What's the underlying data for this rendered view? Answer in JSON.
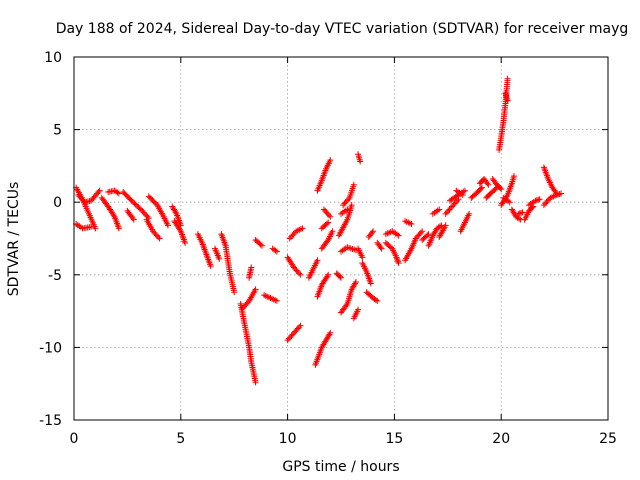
{
  "chart_data": {
    "type": "scatter",
    "title": "Day 188 of 2024, Sidereal Day-to-day VTEC variation (SDTVAR) for receiver mayg",
    "xlabel": "GPS time / hours",
    "ylabel": "SDTVAR / TECUs",
    "xlim": [
      0,
      25
    ],
    "ylim": [
      -15,
      10
    ],
    "xticks": [
      0,
      5,
      10,
      15,
      20,
      25
    ],
    "xtick_labels": [
      "0",
      "5",
      "10",
      "15",
      "20",
      "25"
    ],
    "yticks": [
      -15,
      -10,
      -5,
      0,
      5,
      10
    ],
    "ytick_labels": [
      "-15",
      "-10",
      "-5",
      "0",
      "5",
      "10"
    ],
    "grid": true,
    "marker": "plus",
    "color": "#ff0000",
    "segments": [
      [
        [
          0.1,
          1.0
        ],
        [
          0.4,
          0.2
        ],
        [
          0.7,
          -0.8
        ],
        [
          1.0,
          -1.8
        ]
      ],
      [
        [
          0.2,
          0.5
        ],
        [
          0.5,
          0.0
        ],
        [
          0.8,
          0.1
        ],
        [
          1.2,
          0.8
        ]
      ],
      [
        [
          0.1,
          -1.5
        ],
        [
          0.4,
          -1.8
        ],
        [
          0.8,
          -1.7
        ]
      ],
      [
        [
          1.3,
          0.3
        ],
        [
          1.6,
          -0.3
        ],
        [
          1.9,
          -1.0
        ],
        [
          2.1,
          -1.8
        ]
      ],
      [
        [
          1.6,
          0.7
        ],
        [
          1.9,
          0.8
        ],
        [
          2.1,
          0.6
        ]
      ],
      [
        [
          2.3,
          0.7
        ],
        [
          2.7,
          0.1
        ],
        [
          3.2,
          -0.6
        ],
        [
          3.5,
          -1.1
        ]
      ],
      [
        [
          2.5,
          -0.6
        ],
        [
          2.8,
          -1.2
        ]
      ],
      [
        [
          3.5,
          0.4
        ],
        [
          3.9,
          -0.2
        ],
        [
          4.2,
          -1.0
        ],
        [
          4.4,
          -1.6
        ]
      ],
      [
        [
          3.4,
          -1.2
        ],
        [
          3.7,
          -2.0
        ],
        [
          4.0,
          -2.5
        ]
      ],
      [
        [
          4.6,
          -0.3
        ],
        [
          4.8,
          -0.8
        ],
        [
          5.0,
          -1.6
        ]
      ],
      [
        [
          4.7,
          -1.3
        ],
        [
          5.0,
          -2.0
        ],
        [
          5.2,
          -2.8
        ]
      ],
      [
        [
          5.8,
          -2.2
        ],
        [
          6.0,
          -2.8
        ],
        [
          6.2,
          -3.6
        ],
        [
          6.4,
          -4.4
        ]
      ],
      [
        [
          6.9,
          -2.2
        ],
        [
          7.1,
          -3.0
        ],
        [
          7.2,
          -4.0
        ],
        [
          7.3,
          -4.9
        ],
        [
          7.5,
          -6.2
        ]
      ],
      [
        [
          6.6,
          -3.2
        ],
        [
          6.8,
          -3.9
        ]
      ],
      [
        [
          7.8,
          -7.0
        ],
        [
          8.0,
          -8.5
        ],
        [
          8.2,
          -10.0
        ],
        [
          8.3,
          -11.0
        ],
        [
          8.5,
          -12.4
        ]
      ],
      [
        [
          7.9,
          -7.3
        ],
        [
          8.2,
          -6.8
        ],
        [
          8.5,
          -6.0
        ]
      ],
      [
        [
          8.2,
          -5.2
        ],
        [
          8.3,
          -4.5
        ]
      ],
      [
        [
          8.5,
          -2.6
        ],
        [
          8.8,
          -3.0
        ]
      ],
      [
        [
          8.9,
          -6.4
        ],
        [
          9.2,
          -6.6
        ],
        [
          9.5,
          -6.8
        ]
      ],
      [
        [
          9.3,
          -3.2
        ],
        [
          9.5,
          -3.4
        ]
      ],
      [
        [
          10.1,
          -2.5
        ],
        [
          10.4,
          -2.0
        ],
        [
          10.7,
          -1.8
        ]
      ],
      [
        [
          10.0,
          -3.8
        ],
        [
          10.3,
          -4.5
        ],
        [
          10.6,
          -5.0
        ]
      ],
      [
        [
          10.0,
          -9.5
        ],
        [
          10.3,
          -9.0
        ],
        [
          10.6,
          -8.5
        ]
      ],
      [
        [
          11.0,
          -5.2
        ],
        [
          11.2,
          -4.6
        ],
        [
          11.4,
          -4.0
        ]
      ],
      [
        [
          11.4,
          -6.5
        ],
        [
          11.6,
          -5.7
        ],
        [
          11.9,
          -5.0
        ]
      ],
      [
        [
          11.6,
          -1.8
        ],
        [
          11.9,
          -1.4
        ]
      ],
      [
        [
          11.6,
          -3.2
        ],
        [
          11.9,
          -2.6
        ],
        [
          12.1,
          -2.0
        ]
      ],
      [
        [
          11.3,
          -11.2
        ],
        [
          11.6,
          -10.0
        ],
        [
          11.8,
          -9.5
        ],
        [
          12.0,
          -9.0
        ]
      ],
      [
        [
          11.7,
          -0.5
        ],
        [
          12.0,
          -1.0
        ]
      ],
      [
        [
          11.4,
          0.8
        ],
        [
          11.6,
          1.5
        ],
        [
          11.8,
          2.3
        ],
        [
          12.0,
          2.9
        ]
      ],
      [
        [
          12.3,
          -4.9
        ],
        [
          12.5,
          -5.2
        ]
      ],
      [
        [
          12.5,
          -7.6
        ],
        [
          12.8,
          -7.0
        ],
        [
          13.0,
          -6.0
        ],
        [
          13.2,
          -5.5
        ]
      ],
      [
        [
          12.5,
          -0.8
        ],
        [
          12.8,
          -0.5
        ]
      ],
      [
        [
          12.6,
          -0.2
        ],
        [
          12.9,
          0.3
        ],
        [
          13.1,
          1.2
        ]
      ],
      [
        [
          12.4,
          -2.3
        ],
        [
          12.8,
          -1.2
        ],
        [
          13.0,
          -0.2
        ]
      ],
      [
        [
          12.5,
          -3.4
        ],
        [
          12.8,
          -3.1
        ],
        [
          13.2,
          -3.3
        ]
      ],
      [
        [
          13.1,
          -8.0
        ],
        [
          13.3,
          -7.4
        ]
      ],
      [
        [
          13.3,
          3.3
        ],
        [
          13.4,
          2.8
        ]
      ],
      [
        [
          13.3,
          -3.2
        ],
        [
          13.5,
          -3.8
        ]
      ],
      [
        [
          13.5,
          -4.2
        ],
        [
          13.7,
          -4.8
        ],
        [
          13.9,
          -5.6
        ]
      ],
      [
        [
          13.7,
          -6.2
        ],
        [
          14.0,
          -6.6
        ],
        [
          14.2,
          -6.8
        ]
      ],
      [
        [
          13.8,
          -2.4
        ],
        [
          14.0,
          -2.0
        ]
      ],
      [
        [
          14.2,
          -2.8
        ],
        [
          14.4,
          -3.2
        ]
      ],
      [
        [
          14.6,
          -2.2
        ],
        [
          14.9,
          -2.0
        ],
        [
          15.2,
          -2.3
        ]
      ],
      [
        [
          14.6,
          -2.8
        ],
        [
          14.9,
          -3.2
        ],
        [
          15.1,
          -3.8
        ],
        [
          15.2,
          -4.2
        ]
      ],
      [
        [
          15.5,
          -4.0
        ],
        [
          15.8,
          -3.2
        ],
        [
          16.0,
          -2.5
        ],
        [
          16.3,
          -2.0
        ]
      ],
      [
        [
          15.5,
          -1.3
        ],
        [
          15.8,
          -1.5
        ]
      ],
      [
        [
          16.3,
          -2.6
        ],
        [
          16.6,
          -2.2
        ]
      ],
      [
        [
          16.6,
          -3.0
        ],
        [
          16.8,
          -2.3
        ],
        [
          17.0,
          -1.8
        ],
        [
          17.2,
          -1.6
        ]
      ],
      [
        [
          16.8,
          -0.8
        ],
        [
          17.1,
          -0.5
        ]
      ],
      [
        [
          17.1,
          -2.4
        ],
        [
          17.4,
          -1.6
        ]
      ],
      [
        [
          17.4,
          -0.8
        ],
        [
          17.7,
          -0.3
        ],
        [
          18.0,
          0.2
        ]
      ],
      [
        [
          17.6,
          0.1
        ],
        [
          18.0,
          0.5
        ],
        [
          18.3,
          0.8
        ]
      ],
      [
        [
          17.9,
          0.8
        ],
        [
          18.2,
          0.5
        ]
      ],
      [
        [
          18.1,
          -2.0
        ],
        [
          18.3,
          -1.4
        ],
        [
          18.5,
          -0.8
        ]
      ],
      [
        [
          18.6,
          0.3
        ],
        [
          18.9,
          0.7
        ],
        [
          19.1,
          1.0
        ]
      ],
      [
        [
          19.0,
          1.3
        ],
        [
          19.2,
          1.6
        ],
        [
          19.4,
          1.2
        ]
      ],
      [
        [
          19.3,
          0.3
        ],
        [
          19.5,
          0.6
        ],
        [
          19.8,
          1.0
        ]
      ],
      [
        [
          19.6,
          1.6
        ],
        [
          19.8,
          1.2
        ],
        [
          20.0,
          0.9
        ]
      ],
      [
        [
          19.9,
          3.6
        ],
        [
          20.0,
          4.5
        ],
        [
          20.1,
          5.5
        ],
        [
          20.2,
          6.8
        ],
        [
          20.3,
          8.5
        ]
      ],
      [
        [
          20.2,
          7.5
        ],
        [
          20.3,
          7.0
        ]
      ],
      [
        [
          20.0,
          -0.2
        ],
        [
          20.3,
          0.5
        ],
        [
          20.5,
          1.3
        ],
        [
          20.6,
          1.8
        ]
      ],
      [
        [
          20.1,
          0.3
        ],
        [
          20.4,
          0.0
        ]
      ],
      [
        [
          20.5,
          -0.5
        ],
        [
          20.7,
          -1.0
        ],
        [
          20.9,
          -1.2
        ]
      ],
      [
        [
          20.8,
          -0.8
        ],
        [
          21.0,
          -0.7
        ]
      ],
      [
        [
          21.1,
          -1.2
        ],
        [
          21.3,
          -0.6
        ],
        [
          21.5,
          -0.3
        ]
      ],
      [
        [
          21.3,
          -0.2
        ],
        [
          21.6,
          0.1
        ],
        [
          21.8,
          0.2
        ]
      ],
      [
        [
          22.0,
          2.4
        ],
        [
          22.2,
          1.6
        ],
        [
          22.4,
          1.0
        ],
        [
          22.6,
          0.6
        ]
      ],
      [
        [
          22.0,
          -0.2
        ],
        [
          22.3,
          0.3
        ],
        [
          22.6,
          0.5
        ],
        [
          22.8,
          0.6
        ]
      ]
    ]
  }
}
